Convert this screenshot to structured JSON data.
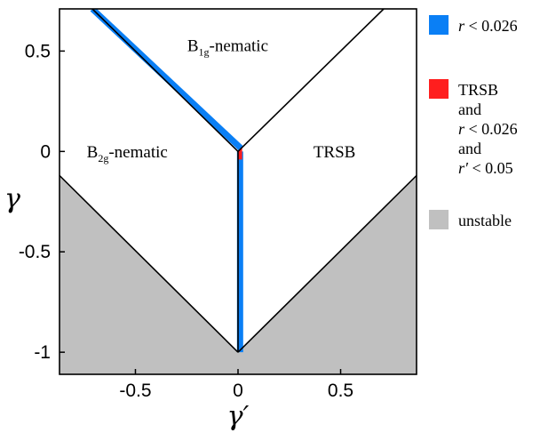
{
  "chart_data": {
    "type": "area",
    "xlabel": "γ′",
    "ylabel": "γ",
    "xlim": [
      -0.87,
      0.87
    ],
    "ylim": [
      -1.11,
      0.71
    ],
    "x_ticks": [
      {
        "value": -0.5,
        "label": "-0.5"
      },
      {
        "value": 0,
        "label": "0"
      },
      {
        "value": 0.5,
        "label": "0.5"
      }
    ],
    "y_ticks": [
      {
        "value": 0.5,
        "label": "0.5"
      },
      {
        "value": 0,
        "label": "0"
      },
      {
        "value": -0.5,
        "label": "-0.5"
      },
      {
        "value": -1,
        "label": "-1"
      }
    ],
    "boundaries": [
      {
        "from": [
          0,
          0
        ],
        "to": [
          -0.71,
          0.71
        ]
      },
      {
        "from": [
          0,
          0
        ],
        "to": [
          0.71,
          0.71
        ]
      },
      {
        "from": [
          0,
          0
        ],
        "to": [
          0,
          -1
        ]
      },
      {
        "from": [
          0,
          -1
        ],
        "to": [
          -0.87,
          -0.12
        ]
      },
      {
        "from": [
          0,
          -1
        ],
        "to": [
          0.87,
          -0.12
        ]
      }
    ],
    "unstable_region": [
      [
        -0.87,
        -0.12
      ],
      [
        0,
        -1
      ],
      [
        0.87,
        -0.12
      ],
      [
        0.87,
        -1.11
      ],
      [
        -0.87,
        -1.11
      ]
    ],
    "blue_bands": [
      {
        "from": [
          0.015,
          0.015
        ],
        "to": [
          -0.71,
          0.71
        ]
      },
      {
        "from": [
          0.01,
          0.0
        ],
        "to": [
          0.01,
          -1
        ]
      }
    ],
    "red_patch": [
      [
        0,
        0
      ],
      [
        0.02,
        0.02
      ],
      [
        0.02,
        -0.04
      ],
      [
        0,
        -0.04
      ]
    ],
    "region_labels": [
      {
        "main": "B",
        "sub": "1g",
        "tail": "-nematic",
        "x": -0.05,
        "y": 0.5
      },
      {
        "main": "B",
        "sub": "2g",
        "tail": "-nematic",
        "x": -0.54,
        "y": -0.03
      },
      {
        "main": "TRSB",
        "x": 0.47,
        "y": -0.03
      }
    ],
    "legend": [
      {
        "color": "#0a7ff5",
        "lines": [
          {
            "parts": [
              {
                "t": "r",
                "i": true
              },
              {
                "t": " < 0.026"
              }
            ]
          }
        ]
      },
      {
        "color": "#ff1e1e",
        "lines": [
          {
            "parts": [
              {
                "t": "TRSB"
              }
            ]
          },
          {
            "parts": [
              {
                "t": "and"
              }
            ]
          },
          {
            "parts": [
              {
                "t": "r",
                "i": true
              },
              {
                "t": " < 0.026"
              }
            ]
          },
          {
            "parts": [
              {
                "t": "and"
              }
            ]
          },
          {
            "parts": [
              {
                "t": "r′",
                "i": true
              },
              {
                "t": " < 0.05"
              }
            ]
          }
        ]
      },
      {
        "color": "#c0c0c0",
        "lines": [
          {
            "parts": [
              {
                "t": "unstable"
              }
            ]
          }
        ]
      }
    ],
    "legend_placement": "right",
    "grid": false
  }
}
